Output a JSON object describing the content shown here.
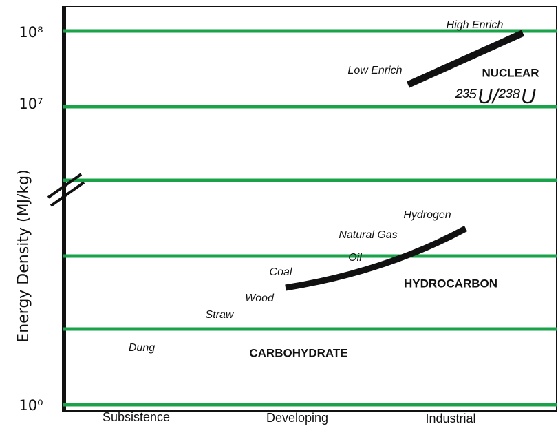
{
  "y_axis": {
    "label": "Energy Density (MJ/kg)",
    "ticks": [
      "10⁸",
      "10⁷",
      "10⁰"
    ]
  },
  "x_axis": {
    "categories": [
      "Subsistence",
      "Developing",
      "Industrial"
    ]
  },
  "labels": {
    "high_enrich": "High Enrich",
    "low_enrich": "Low Enrich",
    "nuclear": "NUCLEAR",
    "isotopes": "²³⁵U/²³⁸U",
    "hydrogen": "Hydrogen",
    "natural_gas": "Natural Gas",
    "oil": "Oil",
    "coal": "Coal",
    "wood": "Wood",
    "straw": "Straw",
    "dung": "Dung",
    "hydrocarbon": "HYDROCARBON",
    "carbohydrate": "CARBOHYDRATE"
  }
}
